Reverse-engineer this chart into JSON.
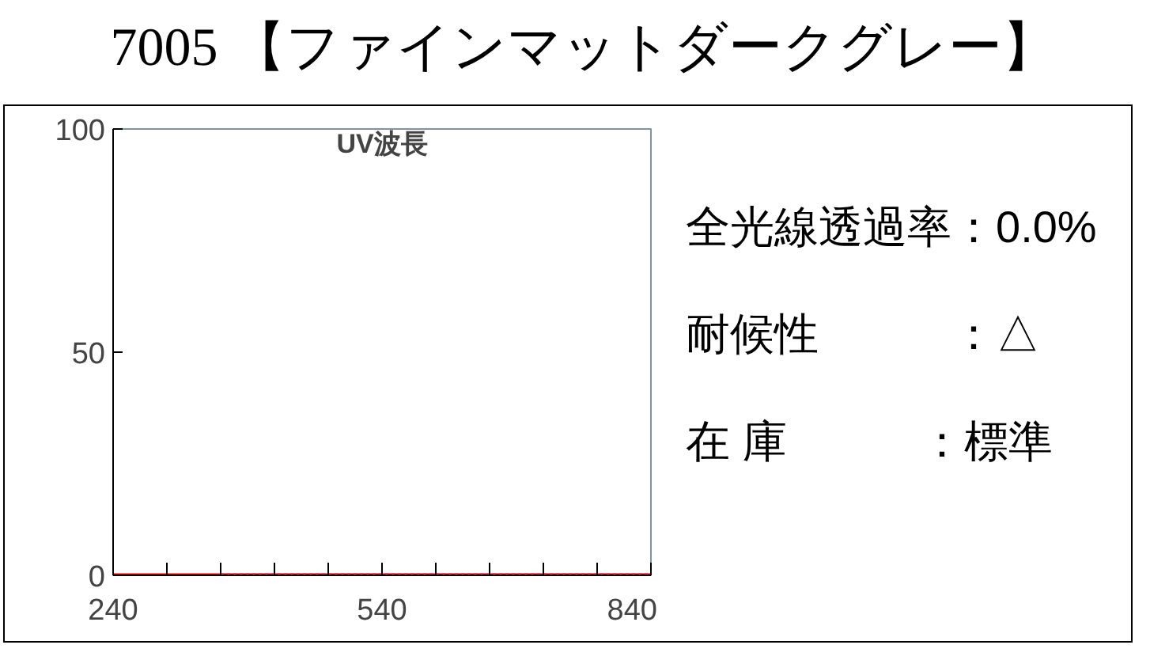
{
  "chart_data": {
    "type": "line",
    "title": "7005 【ファインマットダークグレー】",
    "xlabel": "UV波長",
    "xlim": [
      240,
      840
    ],
    "ylim": [
      0,
      100
    ],
    "xticks": [
      240,
      {
        "value": 300,
        "label": null
      },
      {
        "value": 360,
        "label": null
      },
      {
        "value": 420,
        "label": null
      },
      {
        "value": 480,
        "label": null
      },
      540,
      {
        "value": 600,
        "label": null
      },
      {
        "value": 660,
        "label": null
      },
      {
        "value": 720,
        "label": null
      },
      {
        "value": 780,
        "label": null
      },
      840
    ],
    "yticks": [
      0,
      50,
      100
    ],
    "grid": false,
    "series": [
      {
        "color": "#e00000",
        "x": [
          240,
          840
        ],
        "values": [
          0,
          0
        ],
        "line_style": "solid"
      },
      {
        "color": "#c8325a",
        "x": [
          360,
          840
        ],
        "values": [
          0,
          0
        ],
        "line_style": "dotted"
      }
    ],
    "annotations": [
      "全光線透過率：0.0%",
      "耐候性　　　：△",
      "在 庫　　　：標準"
    ]
  }
}
